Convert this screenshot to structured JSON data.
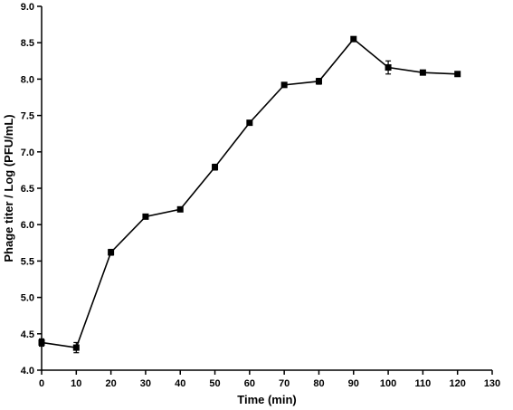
{
  "chart_data": {
    "type": "line",
    "xlabel": "Time (min)",
    "ylabel": "Phage titer / Log (PFU/mL)",
    "xlim": [
      0,
      130
    ],
    "ylim": [
      4.0,
      9.0
    ],
    "x_ticks": [
      "0",
      "10",
      "20",
      "30",
      "40",
      "50",
      "60",
      "70",
      "80",
      "90",
      "100",
      "110",
      "120",
      "130"
    ],
    "y_ticks": [
      "4.0",
      "4.5",
      "5.0",
      "5.5",
      "6.0",
      "6.5",
      "7.0",
      "7.5",
      "8.0",
      "8.5",
      "9.0"
    ],
    "grid": false,
    "marker": "square",
    "series": [
      {
        "x": [
          0,
          10,
          20,
          30,
          40,
          50,
          60,
          70,
          80,
          90,
          100,
          110,
          120
        ],
        "y": [
          4.38,
          4.31,
          5.62,
          6.11,
          6.21,
          6.79,
          7.4,
          7.92,
          7.97,
          8.55,
          8.16,
          8.09,
          8.07
        ],
        "error": [
          0.05,
          0.07,
          0.04,
          0.02,
          0.03,
          0.04,
          0.02,
          0.02,
          0.04,
          0.02,
          0.09,
          0.02,
          0.02
        ]
      }
    ],
    "color": "#000000"
  }
}
